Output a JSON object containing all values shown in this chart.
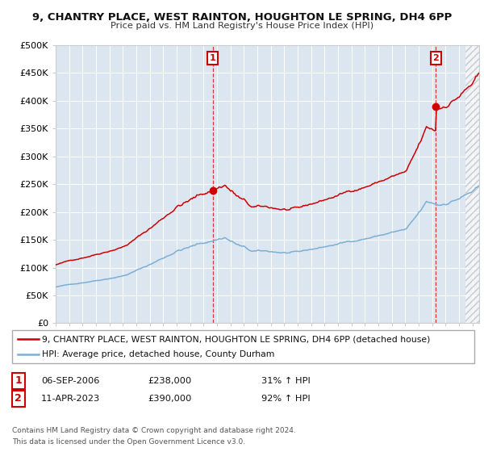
{
  "title1": "9, CHANTRY PLACE, WEST RAINTON, HOUGHTON LE SPRING, DH4 6PP",
  "title2": "Price paid vs. HM Land Registry's House Price Index (HPI)",
  "yticks": [
    0,
    50000,
    100000,
    150000,
    200000,
    250000,
    300000,
    350000,
    400000,
    450000,
    500000
  ],
  "xlim_start": 1995.0,
  "xlim_end": 2026.5,
  "ylim": [
    0,
    500000
  ],
  "hpi_color": "#7bafd4",
  "price_color": "#cc0000",
  "bg_color": "#dce6f1",
  "sale1_x": 2006.68,
  "sale1_y": 238000,
  "sale1_label": "1",
  "sale1_date": "06-SEP-2006",
  "sale1_price": "£238,000",
  "sale1_hpi": "31% ↑ HPI",
  "sale2_x": 2023.27,
  "sale2_y": 390000,
  "sale2_label": "2",
  "sale2_date": "11-APR-2023",
  "sale2_price": "£390,000",
  "sale2_hpi": "92% ↑ HPI",
  "legend_line1": "9, CHANTRY PLACE, WEST RAINTON, HOUGHTON LE SPRING, DH4 6PP (detached house)",
  "legend_line2": "HPI: Average price, detached house, County Durham",
  "footer1": "Contains HM Land Registry data © Crown copyright and database right 2024.",
  "footer2": "This data is licensed under the Open Government Licence v3.0."
}
